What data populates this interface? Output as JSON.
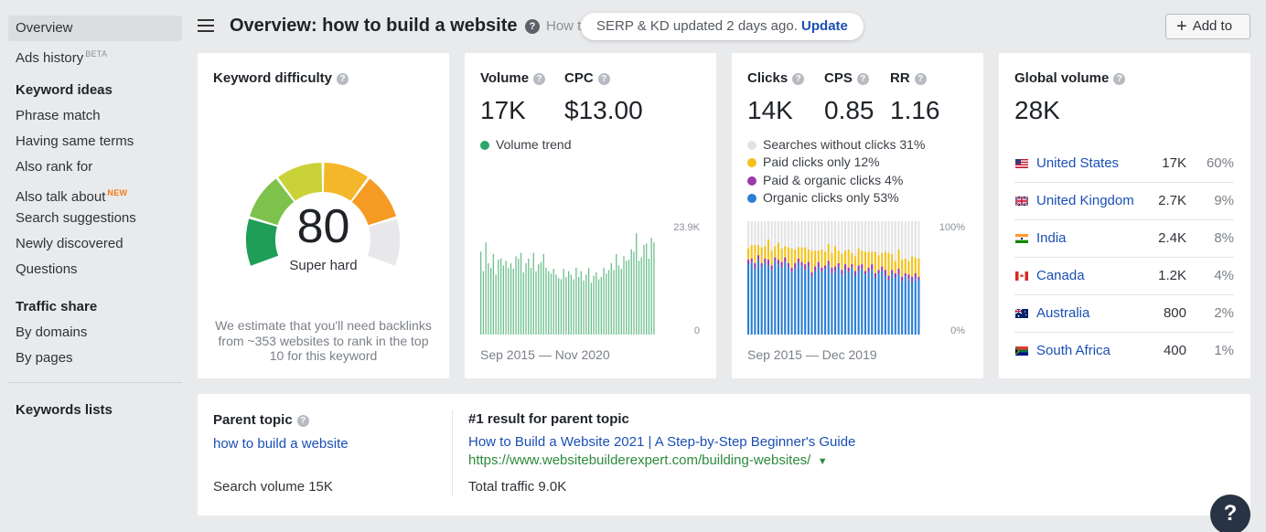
{
  "sidebar": {
    "items": [
      {
        "label": "Overview",
        "active": true
      },
      {
        "label": "Ads history",
        "badge": "BETA"
      }
    ],
    "keyword_ideas": {
      "heading": "Keyword ideas",
      "items": [
        {
          "label": "Phrase match"
        },
        {
          "label": "Having same terms"
        },
        {
          "label": "Also rank for"
        },
        {
          "label": "Also talk about",
          "badge": "NEW"
        },
        {
          "label": "Search suggestions"
        },
        {
          "label": "Newly discovered"
        },
        {
          "label": "Questions"
        }
      ]
    },
    "traffic_share": {
      "heading": "Traffic share",
      "items": [
        {
          "label": "By domains"
        },
        {
          "label": "By pages"
        }
      ]
    },
    "keywords_lists": "Keywords lists"
  },
  "header": {
    "title": "Overview: how to build a website",
    "truncated_keyword": "How t",
    "serp_notice": "SERP & KD updated 2 days ago.",
    "update_link": "Update",
    "add_button": "Add to"
  },
  "keyword_difficulty": {
    "label": "Keyword difficulty",
    "value": "80",
    "value_numeric": 80,
    "max": 100,
    "rating": "Super hard",
    "note": "We estimate that you'll need backlinks from ~353 websites to rank in the top 10 for this keyword",
    "colors": [
      "#1e9e57",
      "#7dc24b",
      "#c9d238",
      "#f5b72a",
      "#f59a23",
      "#e8e8ea"
    ]
  },
  "volume": {
    "label": "Volume",
    "value": "17K",
    "cpc_label": "CPC",
    "cpc_value": "$13.00",
    "legend": "Volume trend",
    "legend_color": "#2aa56b",
    "axis_max": "23.9K",
    "axis_min": "0",
    "date_range": "Sep 2015 — Nov 2020",
    "bar_color": "#6fc08e",
    "bars": [
      0.72,
      0.55,
      0.8,
      0.62,
      0.58,
      0.7,
      0.52,
      0.65,
      0.66,
      0.6,
      0.64,
      0.58,
      0.62,
      0.57,
      0.68,
      0.66,
      0.71,
      0.54,
      0.62,
      0.66,
      0.58,
      0.71,
      0.55,
      0.61,
      0.63,
      0.7,
      0.58,
      0.55,
      0.53,
      0.57,
      0.52,
      0.49,
      0.48,
      0.57,
      0.5,
      0.55,
      0.52,
      0.48,
      0.58,
      0.5,
      0.55,
      0.47,
      0.52,
      0.58,
      0.45,
      0.51,
      0.54,
      0.48,
      0.5,
      0.58,
      0.53,
      0.56,
      0.62,
      0.56,
      0.7,
      0.6,
      0.57,
      0.68,
      0.64,
      0.65,
      0.74,
      0.72,
      0.88,
      0.64,
      0.67,
      0.78,
      0.79,
      0.66,
      0.84,
      0.8
    ]
  },
  "clicks": {
    "label": "Clicks",
    "value": "14K",
    "cps_label": "CPS",
    "cps_value": "0.85",
    "rr_label": "RR",
    "rr_value": "1.16",
    "legend": [
      {
        "label": "Searches without clicks 31%",
        "color": "#e3e3e5"
      },
      {
        "label": "Paid clicks only 12%",
        "color": "#f2c21b"
      },
      {
        "label": "Paid & organic clicks 4%",
        "color": "#9b3aa8"
      },
      {
        "label": "Organic clicks only 53%",
        "color": "#2a7fd4"
      }
    ],
    "axis_max": "100%",
    "axis_min": "0%",
    "date_range": "Sep 2015 — Dec 2019",
    "organic_share": [
      0.62,
      0.64,
      0.58,
      0.66,
      0.6,
      0.63,
      0.61,
      0.57,
      0.65,
      0.62,
      0.59,
      0.64,
      0.6,
      0.55,
      0.58,
      0.63,
      0.61,
      0.57,
      0.6,
      0.52,
      0.56,
      0.59,
      0.55,
      0.58,
      0.61,
      0.54,
      0.56,
      0.6,
      0.53,
      0.57,
      0.55,
      0.59,
      0.52,
      0.56,
      0.58,
      0.53,
      0.55,
      0.57,
      0.5,
      0.54,
      0.56,
      0.52,
      0.48,
      0.54,
      0.5,
      0.53,
      0.47,
      0.51,
      0.49,
      0.46,
      0.5,
      0.48
    ],
    "paid_share": [
      0.1,
      0.12,
      0.16,
      0.09,
      0.14,
      0.11,
      0.18,
      0.13,
      0.1,
      0.15,
      0.12,
      0.1,
      0.14,
      0.17,
      0.12,
      0.1,
      0.13,
      0.15,
      0.11,
      0.19,
      0.14,
      0.1,
      0.16,
      0.12,
      0.15,
      0.13,
      0.18,
      0.11,
      0.14,
      0.12,
      0.16,
      0.1,
      0.13,
      0.15,
      0.12,
      0.17,
      0.14,
      0.11,
      0.19,
      0.13,
      0.12,
      0.16,
      0.2,
      0.14,
      0.11,
      0.17,
      0.15,
      0.13,
      0.12,
      0.18,
      0.14,
      0.16
    ],
    "mixed_share": [
      0.04,
      0.03,
      0.05,
      0.04,
      0.03,
      0.04,
      0.05,
      0.04,
      0.03,
      0.04,
      0.05,
      0.04,
      0.03,
      0.04,
      0.05,
      0.04,
      0.03,
      0.05,
      0.04,
      0.03,
      0.04,
      0.05,
      0.04,
      0.03,
      0.04,
      0.05,
      0.04,
      0.03,
      0.04,
      0.05,
      0.04,
      0.03,
      0.04,
      0.05,
      0.04,
      0.03,
      0.04,
      0.05,
      0.04,
      0.03,
      0.04,
      0.05,
      0.04,
      0.03,
      0.04,
      0.05,
      0.04,
      0.03,
      0.04,
      0.05,
      0.04,
      0.03
    ]
  },
  "global": {
    "label": "Global volume",
    "value": "28K",
    "countries": [
      {
        "name": "United States",
        "volume": "17K",
        "share": "60%",
        "flag": "us-flag-icon"
      },
      {
        "name": "United Kingdom",
        "volume": "2.7K",
        "share": "9%",
        "flag": "uk-flag-icon"
      },
      {
        "name": "India",
        "volume": "2.4K",
        "share": "8%",
        "flag": "in-flag-icon"
      },
      {
        "name": "Canada",
        "volume": "1.2K",
        "share": "4%",
        "flag": "ca-flag-icon"
      },
      {
        "name": "Australia",
        "volume": "800",
        "share": "2%",
        "flag": "au-flag-icon"
      },
      {
        "name": "South Africa",
        "volume": "400",
        "share": "1%",
        "flag": "za-flag-icon"
      }
    ]
  },
  "parent_topic": {
    "label": "Parent topic",
    "topic": "how to build a website",
    "search_volume": "Search volume 15K",
    "result_label": "#1 result for parent topic",
    "result_title": "How to Build a Website 2021 | A Step-by-Step Beginner's Guide",
    "result_url": "https://www.websitebuilderexpert.com/building-websites/",
    "total_traffic": "Total traffic 9.0K"
  },
  "help_fab": "?"
}
